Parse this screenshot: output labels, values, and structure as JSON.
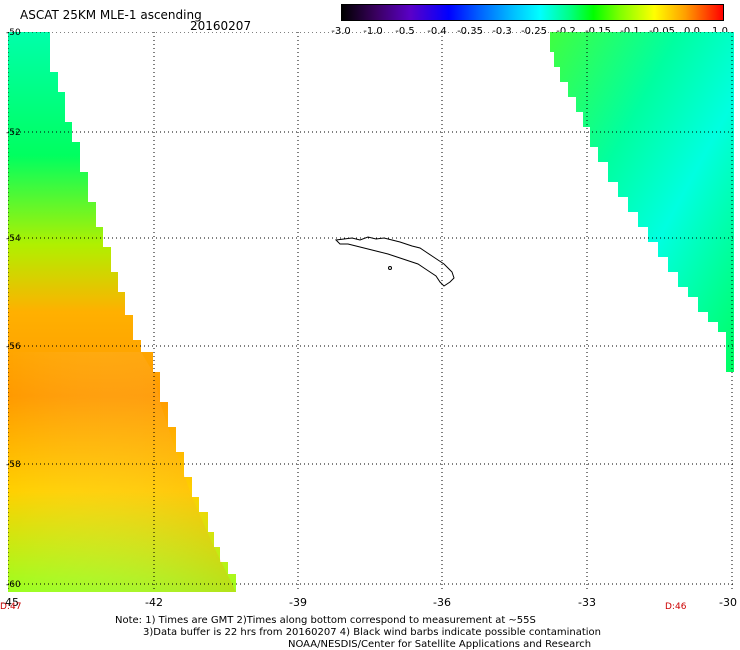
{
  "title": "ASCAT 25KM MLE-1 ascending",
  "date": "20160207",
  "colorbar": {
    "labels": [
      "-3.0",
      "-1.0",
      "-0.5",
      "-0.4",
      "-0.35",
      "-0.3",
      "-0.25",
      "-0.2",
      "-0.15",
      "-0.1",
      "-0.05",
      "0.0",
      "1.0"
    ]
  },
  "map": {
    "lat_labels": [
      "-50",
      "-52",
      "-54",
      "-56",
      "-58",
      "-60"
    ],
    "lon_labels": [
      "-45",
      "-42",
      "-39",
      "-36",
      "-33",
      "-30"
    ],
    "time_left": "D:47",
    "time_right": "D:46"
  },
  "notes": {
    "line1": "Note: 1) Times are GMT 2)Times along bottom correspond to measurement at ~55S",
    "line2": "3)Data buffer is 22 hrs from 20160207 4) Black wind barbs indicate possible contamination",
    "line3": "NOAA/NESDIS/Center for Satellite Applications and Research"
  },
  "colors": {
    "grid_dots": "#000000",
    "time_label": "#cc0000"
  }
}
